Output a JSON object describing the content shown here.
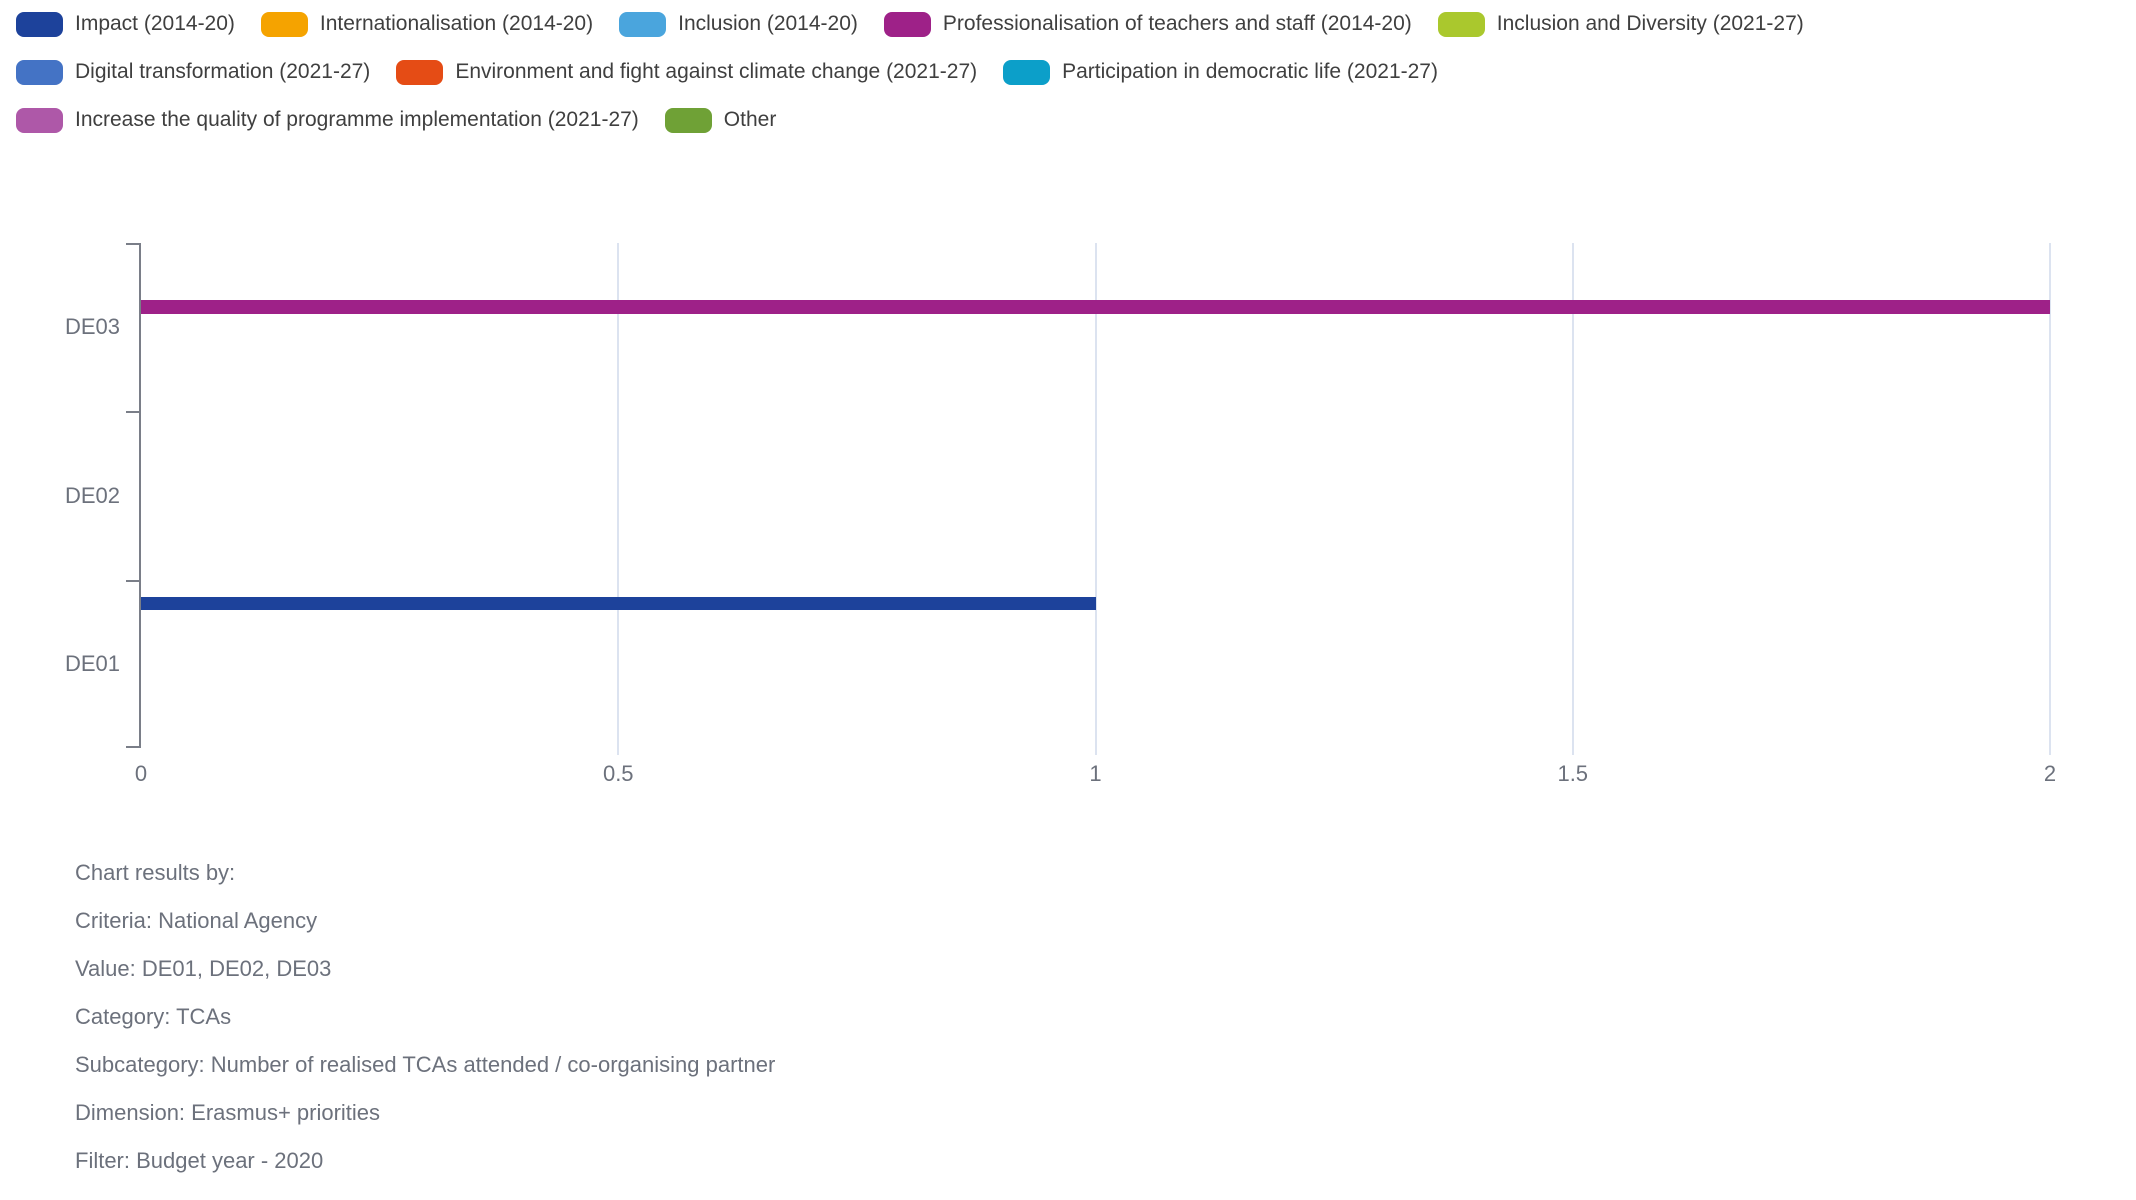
{
  "chart_data": {
    "type": "bar",
    "orientation": "horizontal",
    "title": "",
    "categories": [
      "DE01",
      "DE02",
      "DE03"
    ],
    "category_display_order_top_to_bottom": [
      "DE03",
      "DE02",
      "DE01"
    ],
    "series": [
      {
        "name": "Impact (2014-20)",
        "color": "#1d429b",
        "values": [
          1,
          0,
          0
        ]
      },
      {
        "name": "Internationalisation (2014-20)",
        "color": "#f5a300",
        "values": [
          0,
          0,
          0
        ]
      },
      {
        "name": "Inclusion (2014-20)",
        "color": "#4aa5dd",
        "values": [
          0,
          0,
          0
        ]
      },
      {
        "name": "Professionalisation of teachers and staff (2014-20)",
        "color": "#9e2188",
        "values": [
          0,
          0,
          2
        ]
      },
      {
        "name": "Inclusion and Diversity (2021-27)",
        "color": "#aac82d",
        "values": [
          0,
          0,
          0
        ]
      },
      {
        "name": "Digital transformation (2021-27)",
        "color": "#4473c5",
        "values": [
          0,
          0,
          0
        ]
      },
      {
        "name": "Environment and fight against climate change (2021-27)",
        "color": "#e54c15",
        "values": [
          0,
          0,
          0
        ]
      },
      {
        "name": "Participation in democratic life (2021-27)",
        "color": "#0c9fc9",
        "values": [
          0,
          0,
          0
        ]
      },
      {
        "name": "Increase the quality of programme implementation (2021-27)",
        "color": "#ae58a8",
        "values": [
          0,
          0,
          0
        ]
      },
      {
        "name": "Other",
        "color": "#6fa136",
        "values": [
          0,
          0,
          0
        ]
      }
    ],
    "x_axis": {
      "range": [
        0,
        2
      ],
      "tick_values": [
        0,
        0.5,
        1,
        1.5,
        2
      ],
      "tick_labels": [
        "0",
        "0.5",
        "1",
        "1.5",
        "2"
      ],
      "grid": true
    },
    "y_axis": {
      "labels_top_to_bottom": [
        "DE03",
        "DE02",
        "DE01"
      ]
    },
    "legend_position": "top",
    "legend_rows": [
      [
        0,
        1,
        2,
        3,
        4
      ],
      [
        5,
        6,
        7
      ],
      [
        8,
        9
      ]
    ]
  },
  "footer": {
    "lines": [
      "Chart results by:",
      "Criteria: National Agency",
      "Value: DE01, DE02, DE03",
      "Category: TCAs",
      "Subcategory: Number of realised TCAs attended / co-organising partner",
      "Dimension: Erasmus+ priorities",
      "Filter: Budget year - 2020"
    ]
  },
  "colors": {
    "background": "#ffffff",
    "axis": "#7a7e88",
    "grid": "#dce3f0",
    "axis_label": "#6c717c",
    "footer_text": "#6c717c",
    "legend_text": "#3f3f3f"
  }
}
